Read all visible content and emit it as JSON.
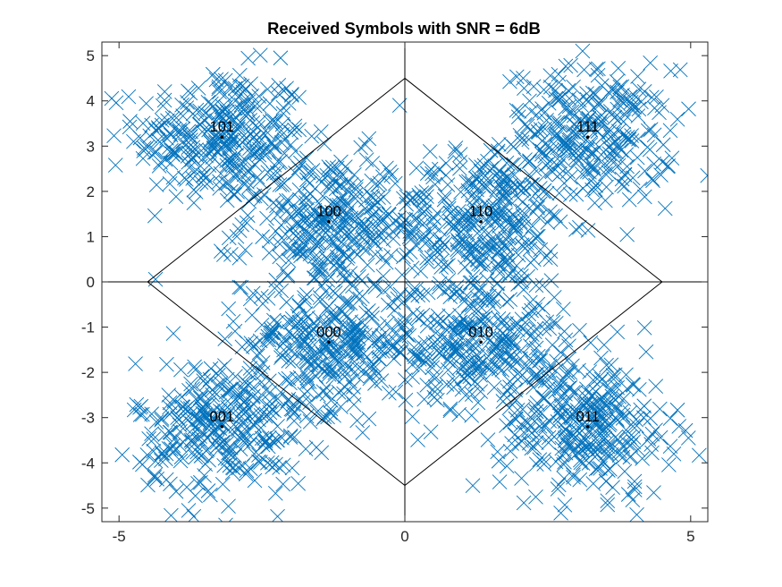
{
  "chart_data": {
    "type": "scatter",
    "title": "Received Symbols with SNR = 6dB",
    "xlabel": "",
    "ylabel": "",
    "xlim": [
      -5.3,
      5.3
    ],
    "ylim": [
      -5.3,
      5.3
    ],
    "x_ticks": [
      -5,
      0,
      5
    ],
    "x_tick_labels": [
      "-5",
      "0",
      "5"
    ],
    "y_ticks": [
      5,
      4,
      3,
      2,
      1,
      0,
      -1,
      -2,
      -3,
      -4,
      -5
    ],
    "y_tick_labels": [
      "5",
      "4",
      "3",
      "2",
      "1",
      "0",
      "-1",
      "-2",
      "-3",
      "-4",
      "-5"
    ],
    "grid": false,
    "legend": "none",
    "series": [
      {
        "marker": "x",
        "color": "#0072BD",
        "points_per_symbol": 300,
        "noise_sigma": 0.75
      }
    ],
    "constellation": {
      "marker": "dot",
      "color": "#000000",
      "points": [
        {
          "label": "101",
          "x": -3.2,
          "y": 3.2
        },
        {
          "label": "111",
          "x": 3.2,
          "y": 3.2
        },
        {
          "label": "100",
          "x": -1.33,
          "y": 1.33
        },
        {
          "label": "110",
          "x": 1.33,
          "y": 1.33
        },
        {
          "label": "000",
          "x": -1.33,
          "y": -1.33
        },
        {
          "label": "010",
          "x": 1.33,
          "y": -1.33
        },
        {
          "label": "001",
          "x": -3.2,
          "y": -3.2
        },
        {
          "label": "011",
          "x": 3.2,
          "y": -3.2
        }
      ]
    },
    "decision_boundaries": {
      "color": "#000000",
      "diamond_vertices": [
        [
          0,
          4.5
        ],
        [
          4.5,
          0
        ],
        [
          0,
          -4.5
        ],
        [
          -4.5,
          0
        ]
      ],
      "axes_lines": true
    }
  }
}
